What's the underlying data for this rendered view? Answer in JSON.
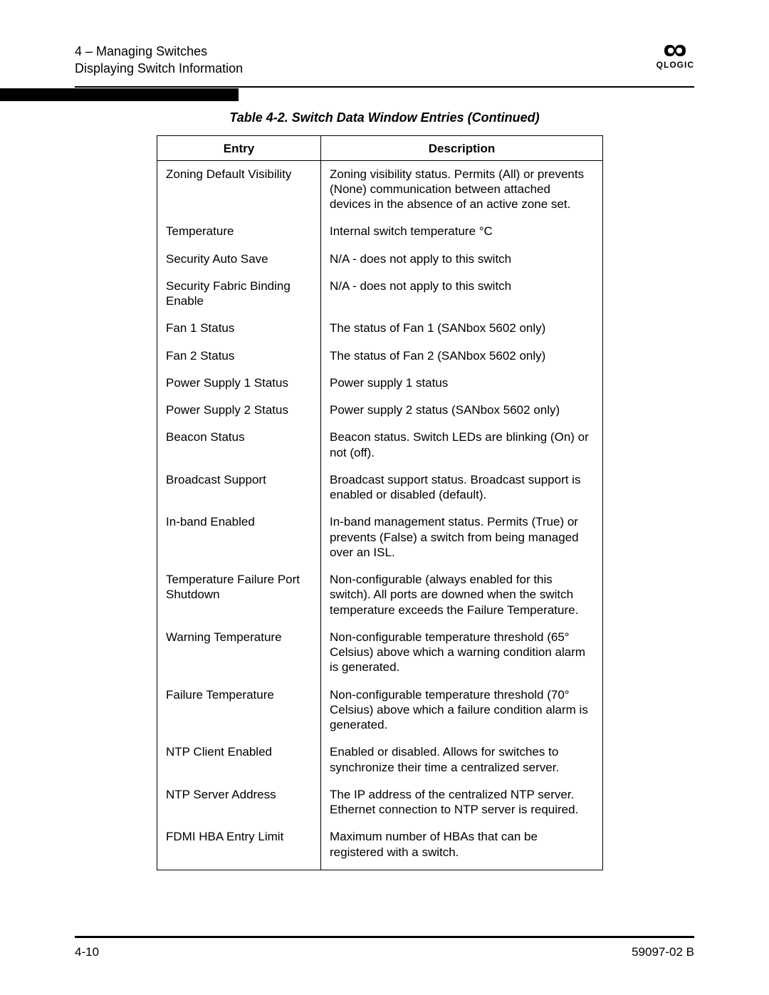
{
  "header": {
    "line1": "4 – Managing Switches",
    "line2": "Displaying Switch Information",
    "logo_text": "QLOGIC"
  },
  "caption": "Table 4-2. Switch Data Window Entries  (Continued)",
  "table": {
    "columns": [
      "Entry",
      "Description"
    ],
    "rows": [
      [
        "Zoning Default Visibility",
        "Zoning visibility status. Permits (All) or prevents (None) communication between attached devices in the absence of an active zone set."
      ],
      [
        "Temperature",
        "Internal switch temperature °C"
      ],
      [
        "Security Auto Save",
        "N/A - does not apply to this switch"
      ],
      [
        "Security Fabric Binding Enable",
        "N/A - does not apply to this switch"
      ],
      [
        "Fan 1 Status",
        "The status of Fan 1 (SANbox 5602 only)"
      ],
      [
        "Fan 2 Status",
        "The status of Fan 2 (SANbox 5602 only)"
      ],
      [
        "Power Supply 1 Status",
        "Power supply 1 status"
      ],
      [
        "Power Supply 2 Status",
        "Power supply 2 status (SANbox 5602 only)"
      ],
      [
        "Beacon Status",
        "Beacon status. Switch LEDs are blinking (On) or not (off)."
      ],
      [
        "Broadcast Support",
        "Broadcast support status. Broadcast support is enabled or disabled (default)."
      ],
      [
        "In-band Enabled",
        "In-band management status. Permits (True) or prevents (False) a switch from being managed over an ISL."
      ],
      [
        "Temperature Failure Port Shutdown",
        "Non-configurable (always enabled for this switch). All ports are downed when the switch temperature exceeds the Failure Temperature."
      ],
      [
        "Warning Temperature",
        "Non-configurable temperature threshold (65° Celsius) above which a warning condition alarm is generated."
      ],
      [
        "Failure Temperature",
        "Non-configurable temperature threshold (70° Celsius) above which a failure condition alarm is generated."
      ],
      [
        "NTP Client Enabled",
        "Enabled or disabled. Allows for switches to synchronize their time a centralized server."
      ],
      [
        "NTP Server Address",
        "The IP address of the centralized NTP server. Ethernet connection to NTP server is required."
      ],
      [
        "FDMI HBA Entry Limit",
        "Maximum number of HBAs that can be registered with a switch."
      ]
    ]
  },
  "footer": {
    "left": "4-10",
    "right": "59097-02 B"
  }
}
